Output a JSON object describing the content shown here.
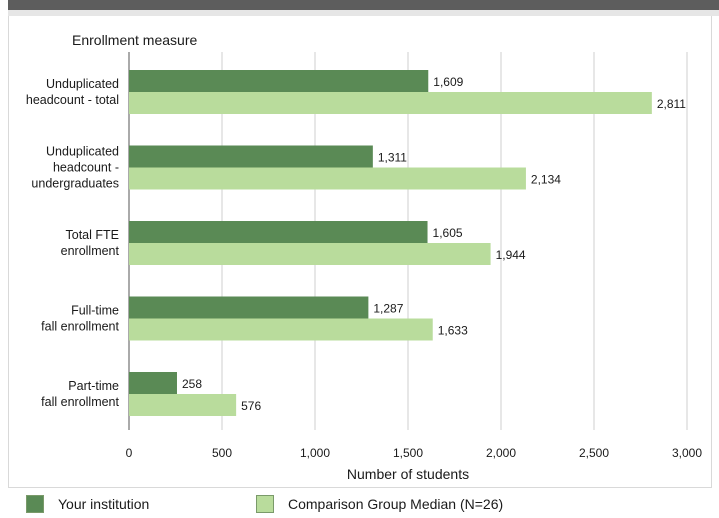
{
  "chart_data": {
    "type": "bar",
    "orientation": "horizontal",
    "category_axis_title": "Enrollment measure",
    "xlabel": "Number of students",
    "xlim": [
      0,
      3000
    ],
    "xticks": [
      "0",
      "500",
      "1,000",
      "1,500",
      "2,000",
      "2,500",
      "3,000"
    ],
    "xtick_values": [
      0,
      500,
      1000,
      1500,
      2000,
      2500,
      3000
    ],
    "grid": "vertical",
    "legend_position": "bottom",
    "categories": [
      [
        "Unduplicated",
        "headcount - total"
      ],
      [
        "Unduplicated",
        "headcount -",
        "undergraduates"
      ],
      [
        "Total FTE",
        "enrollment"
      ],
      [
        "Full-time",
        "fall enrollment"
      ],
      [
        "Part-time",
        "fall enrollment"
      ]
    ],
    "series": [
      {
        "name": "Your institution",
        "color": "#5a8a55",
        "values": [
          1609,
          1311,
          1605,
          1287,
          258
        ],
        "labels": [
          "1,609",
          "1,311",
          "1,605",
          "1,287",
          "258"
        ]
      },
      {
        "name": "Comparison Group Median (N=26)",
        "color": "#b9dc9c",
        "values": [
          2811,
          2134,
          1944,
          1633,
          576
        ],
        "labels": [
          "2,811",
          "2,134",
          "1,944",
          "1,633",
          "576"
        ]
      }
    ]
  }
}
